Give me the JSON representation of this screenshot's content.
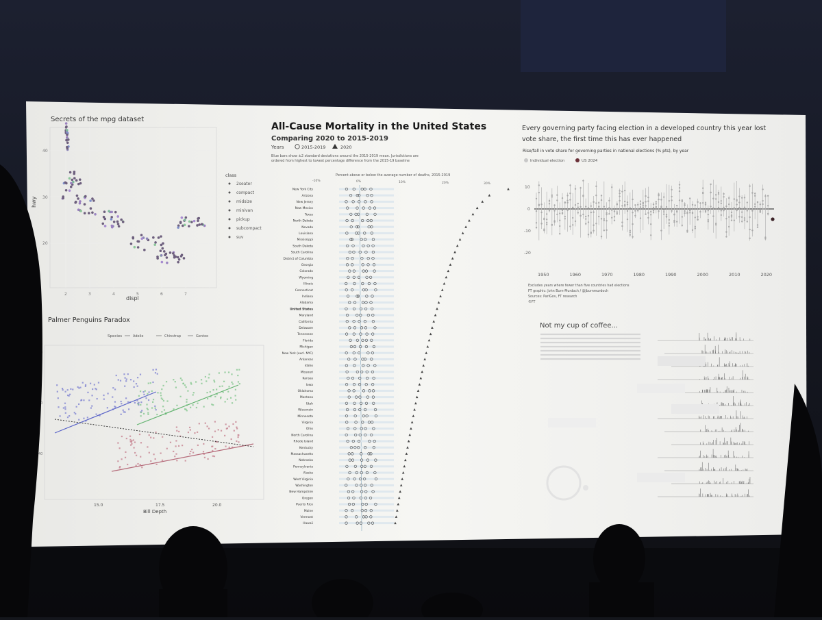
{
  "scene": {
    "description_colors": {
      "screen": "#f4f4f1",
      "room": "#14161c",
      "dark": "#08080a"
    }
  },
  "mpg": {
    "title": "Secrets of the mpg dataset",
    "xlabel": "displ",
    "ylabel": "hwy",
    "x_ticks": [
      "2",
      "3",
      "4",
      "5",
      "6",
      "7"
    ],
    "y_ticks": [
      "40",
      "30",
      "20"
    ],
    "legend_title": "class",
    "legend": [
      "2seater",
      "compact",
      "midsize",
      "minivan",
      "pickup",
      "subcompact",
      "suv"
    ]
  },
  "penguins": {
    "title": "Palmer Penguins Paradox",
    "legend_label": "Species",
    "species": [
      "Adelie",
      "Chinstrap",
      "Gentoo"
    ],
    "xlabel": "Bill Depth",
    "x_ticks": [
      "15.0",
      "17.5",
      "20.0"
    ],
    "y_ticks": [
      "60",
      "50",
      "40"
    ]
  },
  "mortality": {
    "title": "All-Cause Mortality in the United States",
    "subtitle": "Comparing 2020 to 2015-2019",
    "years_label": "Years",
    "legend_2015": "2015-2019",
    "legend_2020": "2020",
    "note_line1": "Blue bars show ±2 standard deviations around the 2015-2019 mean. Jurisdictions are",
    "note_line2": "ordered from highest to lowest percentage difference from the 2015-19 baseline",
    "axis_caption": "Percent above or below the average number of deaths, 2015-2019",
    "x_ticks": [
      "-10%",
      "0%",
      "10%",
      "20%",
      "30%"
    ],
    "states": [
      "New York City",
      "Arizona",
      "New Jersey",
      "New Mexico",
      "Texas",
      "North Dakota",
      "Nevada",
      "Louisiana",
      "Mississippi",
      "South Dakota",
      "South Carolina",
      "District of Columbia",
      "Georgia",
      "Colorado",
      "Wyoming",
      "Illinois",
      "Connecticut",
      "Indiana",
      "Alabama",
      "United States",
      "Maryland",
      "California",
      "Delaware",
      "Tennessee",
      "Florida",
      "Michigan",
      "New York (excl. NYC)",
      "Arkansas",
      "Idaho",
      "Missouri",
      "Kansas",
      "Iowa",
      "Oklahoma",
      "Montana",
      "Utah",
      "Wisconsin",
      "Minnesota",
      "Virginia",
      "Ohio",
      "North Carolina",
      "Rhode Island",
      "Kentucky",
      "Massachusetts",
      "Nebraska",
      "Pennsylvania",
      "Alaska",
      "West Virginia",
      "Washington",
      "New Hampshire",
      "Oregon",
      "Puerto Rico",
      "Maine",
      "Vermont",
      "Hawaii"
    ]
  },
  "ft": {
    "title_line1": "Every governing party facing election in a developed country this year lost",
    "title_line2": "vote share, the first time this has ever happened",
    "subtitle": "Rise/fall in vote share for governing parties in national elections (% pts), by year",
    "legend_individual": "Individual election",
    "legend_us": "US 2024",
    "y_ticks": [
      "10",
      "0",
      "-10",
      "-20"
    ],
    "x_ticks": [
      "1950",
      "1960",
      "1970",
      "1980",
      "1990",
      "2000",
      "2010",
      "2020"
    ],
    "note1": "Excludes years where fewer than five countries had elections",
    "note2": "FT graphic: John Burn-Murdoch / @jburnmurdoch",
    "note3": "Sources: ParlGov, FT research",
    "note4": "©FT"
  },
  "coffee": {
    "title": "Not my cup of coffee..."
  }
}
